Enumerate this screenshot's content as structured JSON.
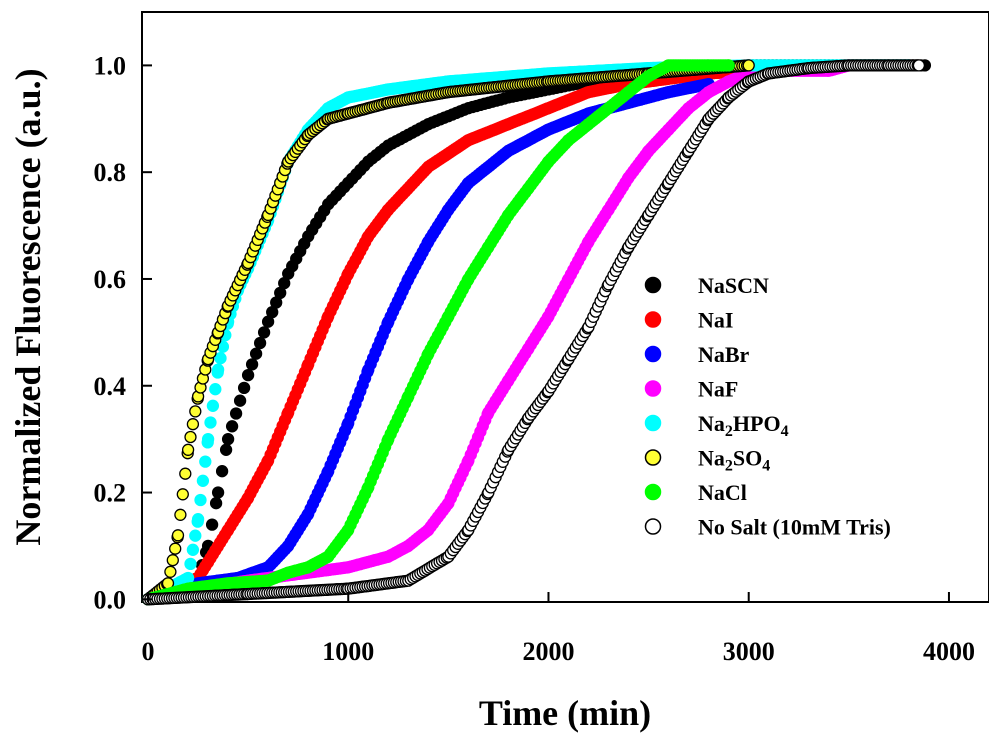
{
  "chart_data": {
    "type": "scatter",
    "title": "",
    "xlabel": "Time (min)",
    "ylabel": "Normalized Fluorescence (a.u.)",
    "xlim": [
      -30,
      4200
    ],
    "ylim": [
      -0.005,
      1.1
    ],
    "xticks": [
      0,
      1000,
      2000,
      3000,
      4000
    ],
    "xtick_labels": [
      "0",
      "1000",
      "2000",
      "3000",
      "4000"
    ],
    "yticks": [
      0.0,
      0.2,
      0.4,
      0.6,
      0.8,
      1.0
    ],
    "ytick_labels": [
      "0.0",
      "0.2",
      "0.4",
      "0.6",
      "0.8",
      "1.0"
    ],
    "grid": false,
    "legend_position": "lower-right",
    "series": [
      {
        "name": "NaSCN",
        "legend": [
          "NaSCN"
        ],
        "fill": "#000000",
        "stroke": "#000000",
        "step": 20,
        "points": [
          [
            0,
            0.0
          ],
          [
            250,
            0.04
          ],
          [
            300,
            0.1
          ],
          [
            350,
            0.2
          ],
          [
            400,
            0.3
          ],
          [
            500,
            0.42
          ],
          [
            600,
            0.52
          ],
          [
            700,
            0.61
          ],
          [
            800,
            0.68
          ],
          [
            900,
            0.74
          ],
          [
            1000,
            0.78
          ],
          [
            1100,
            0.82
          ],
          [
            1200,
            0.85
          ],
          [
            1400,
            0.89
          ],
          [
            1600,
            0.92
          ],
          [
            1800,
            0.94
          ],
          [
            2000,
            0.955
          ],
          [
            2200,
            0.97
          ],
          [
            2400,
            0.98
          ],
          [
            2600,
            0.99
          ],
          [
            2800,
            0.995
          ],
          [
            3000,
            1.0
          ],
          [
            3600,
            1.0
          ],
          [
            3880,
            1.0
          ]
        ]
      },
      {
        "name": "NaI",
        "legend": [
          "NaI"
        ],
        "fill": "#ff0000",
        "stroke": "#ff0000",
        "step": 12,
        "points": [
          [
            0,
            0.0
          ],
          [
            250,
            0.04
          ],
          [
            300,
            0.07
          ],
          [
            400,
            0.13
          ],
          [
            500,
            0.19
          ],
          [
            600,
            0.26
          ],
          [
            700,
            0.35
          ],
          [
            800,
            0.44
          ],
          [
            900,
            0.53
          ],
          [
            1000,
            0.61
          ],
          [
            1100,
            0.68
          ],
          [
            1200,
            0.73
          ],
          [
            1400,
            0.81
          ],
          [
            1600,
            0.86
          ],
          [
            1800,
            0.89
          ],
          [
            2000,
            0.92
          ],
          [
            2200,
            0.95
          ],
          [
            2400,
            0.965
          ],
          [
            2600,
            0.975
          ],
          [
            2800,
            0.985
          ],
          [
            3000,
            0.99
          ]
        ]
      },
      {
        "name": "NaBr",
        "legend": [
          "NaBr"
        ],
        "fill": "#0000ff",
        "stroke": "#0000ff",
        "step": 12,
        "points": [
          [
            0,
            0.0
          ],
          [
            250,
            0.03
          ],
          [
            450,
            0.04
          ],
          [
            600,
            0.06
          ],
          [
            700,
            0.1
          ],
          [
            800,
            0.16
          ],
          [
            900,
            0.24
          ],
          [
            1000,
            0.33
          ],
          [
            1100,
            0.43
          ],
          [
            1200,
            0.52
          ],
          [
            1300,
            0.6
          ],
          [
            1400,
            0.67
          ],
          [
            1500,
            0.73
          ],
          [
            1600,
            0.78
          ],
          [
            1800,
            0.84
          ],
          [
            2000,
            0.88
          ],
          [
            2200,
            0.91
          ],
          [
            2400,
            0.93
          ],
          [
            2600,
            0.95
          ],
          [
            2800,
            0.965
          ]
        ]
      },
      {
        "name": "NaF",
        "legend": [
          "NaF"
        ],
        "fill": "#ff00ff",
        "stroke": "#ff00ff",
        "step": 12,
        "points": [
          [
            0,
            0.0
          ],
          [
            250,
            0.02
          ],
          [
            500,
            0.035
          ],
          [
            800,
            0.05
          ],
          [
            1000,
            0.06
          ],
          [
            1200,
            0.08
          ],
          [
            1300,
            0.1
          ],
          [
            1400,
            0.13
          ],
          [
            1500,
            0.18
          ],
          [
            1600,
            0.26
          ],
          [
            1700,
            0.35
          ],
          [
            1800,
            0.41
          ],
          [
            1900,
            0.47
          ],
          [
            2000,
            0.53
          ],
          [
            2100,
            0.6
          ],
          [
            2200,
            0.67
          ],
          [
            2300,
            0.73
          ],
          [
            2400,
            0.79
          ],
          [
            2500,
            0.84
          ],
          [
            2600,
            0.88
          ],
          [
            2700,
            0.92
          ],
          [
            2800,
            0.95
          ],
          [
            2900,
            0.97
          ],
          [
            3000,
            0.985
          ],
          [
            3200,
            0.99
          ],
          [
            3400,
            0.99
          ],
          [
            3500,
            1.0
          ]
        ]
      },
      {
        "name": "Na2HPO4",
        "legend": [
          "Na",
          "2",
          "HPO",
          "4"
        ],
        "fill": "#00ffff",
        "stroke": "#00ffff",
        "step": 12,
        "points": [
          [
            0,
            0.0
          ],
          [
            100,
            0.02
          ],
          [
            200,
            0.04
          ],
          [
            250,
            0.15
          ],
          [
            300,
            0.3
          ],
          [
            350,
            0.43
          ],
          [
            400,
            0.52
          ],
          [
            450,
            0.58
          ],
          [
            500,
            0.62
          ],
          [
            600,
            0.71
          ],
          [
            700,
            0.82
          ],
          [
            800,
            0.88
          ],
          [
            900,
            0.92
          ],
          [
            1000,
            0.94
          ],
          [
            1200,
            0.955
          ],
          [
            1500,
            0.97
          ],
          [
            2000,
            0.985
          ],
          [
            2500,
            0.995
          ],
          [
            3000,
            1.0
          ],
          [
            3600,
            1.0
          ],
          [
            3800,
            1.0
          ]
        ]
      },
      {
        "name": "Na2SO4",
        "legend": [
          "Na",
          "2",
          "SO",
          "4"
        ],
        "fill": "#ffff33",
        "stroke": "#000000",
        "step": 12,
        "points": [
          [
            0,
            0.0
          ],
          [
            100,
            0.03
          ],
          [
            150,
            0.12
          ],
          [
            200,
            0.28
          ],
          [
            250,
            0.38
          ],
          [
            300,
            0.45
          ],
          [
            350,
            0.5
          ],
          [
            400,
            0.55
          ],
          [
            500,
            0.63
          ],
          [
            600,
            0.72
          ],
          [
            700,
            0.82
          ],
          [
            800,
            0.87
          ],
          [
            900,
            0.9
          ],
          [
            1000,
            0.91
          ],
          [
            1200,
            0.93
          ],
          [
            1500,
            0.95
          ],
          [
            2000,
            0.97
          ],
          [
            2500,
            0.985
          ],
          [
            3000,
            1.0
          ]
        ]
      },
      {
        "name": "NaCl",
        "legend": [
          "NaCl"
        ],
        "fill": "#00ff00",
        "stroke": "#00ff00",
        "step": 12,
        "points": [
          [
            0,
            0.0
          ],
          [
            200,
            0.02
          ],
          [
            400,
            0.03
          ],
          [
            600,
            0.035
          ],
          [
            700,
            0.05
          ],
          [
            800,
            0.06
          ],
          [
            900,
            0.08
          ],
          [
            1000,
            0.13
          ],
          [
            1100,
            0.21
          ],
          [
            1200,
            0.3
          ],
          [
            1300,
            0.38
          ],
          [
            1400,
            0.46
          ],
          [
            1500,
            0.53
          ],
          [
            1600,
            0.6
          ],
          [
            1700,
            0.66
          ],
          [
            1800,
            0.72
          ],
          [
            1900,
            0.77
          ],
          [
            2000,
            0.82
          ],
          [
            2100,
            0.86
          ],
          [
            2200,
            0.89
          ],
          [
            2300,
            0.92
          ],
          [
            2400,
            0.95
          ],
          [
            2500,
            0.98
          ],
          [
            2600,
            1.0
          ],
          [
            2800,
            1.0
          ],
          [
            2900,
            1.0
          ]
        ]
      },
      {
        "name": "No Salt (10mM Tris)",
        "legend": [
          "No Salt (10mM Tris)"
        ],
        "fill": "#ffffff",
        "stroke": "#000000",
        "step": 12,
        "points": [
          [
            0,
            0.0
          ],
          [
            500,
            0.01
          ],
          [
            1000,
            0.02
          ],
          [
            1300,
            0.035
          ],
          [
            1500,
            0.08
          ],
          [
            1600,
            0.13
          ],
          [
            1700,
            0.2
          ],
          [
            1800,
            0.28
          ],
          [
            1900,
            0.34
          ],
          [
            2000,
            0.39
          ],
          [
            2100,
            0.45
          ],
          [
            2200,
            0.51
          ],
          [
            2300,
            0.59
          ],
          [
            2400,
            0.66
          ],
          [
            2500,
            0.72
          ],
          [
            2600,
            0.78
          ],
          [
            2700,
            0.84
          ],
          [
            2800,
            0.9
          ],
          [
            2900,
            0.94
          ],
          [
            3000,
            0.97
          ],
          [
            3100,
            0.985
          ],
          [
            3300,
            0.995
          ],
          [
            3500,
            1.0
          ],
          [
            3700,
            1.0
          ],
          [
            3850,
            1.0
          ]
        ]
      }
    ]
  }
}
